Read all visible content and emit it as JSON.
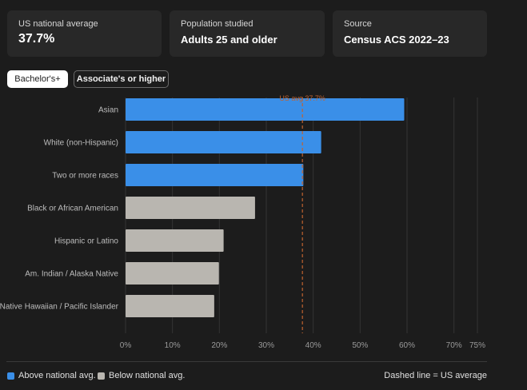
{
  "cards": [
    {
      "label": "US national average",
      "value": "37.7%"
    },
    {
      "label": "Population studied",
      "value": "Adults 25 and older"
    },
    {
      "label": "Source",
      "value": "Census ACS 2022–23"
    }
  ],
  "tabs": [
    {
      "label": "Bachelor's+",
      "active": true
    },
    {
      "label": "Associate's or higher",
      "active": false
    }
  ],
  "chart_data": {
    "type": "bar",
    "orientation": "horizontal",
    "categories": [
      "Asian",
      "White (non-Hispanic)",
      "Two or more races",
      "Black or African American",
      "Hispanic or Latino",
      "Am. Indian / Alaska Native",
      "Native Hawaiian / Pacific Islander"
    ],
    "values": [
      59.4,
      41.7,
      37.9,
      27.6,
      20.9,
      19.9,
      18.9
    ],
    "above_average": [
      true,
      true,
      true,
      false,
      false,
      false,
      false
    ],
    "reference_line": {
      "value": 37.7,
      "label": "US avg 37.7%"
    },
    "xticks": [
      0,
      10,
      20,
      30,
      40,
      50,
      60,
      70,
      75
    ],
    "xtick_labels": [
      "0%",
      "10%",
      "20%",
      "30%",
      "40%",
      "50%",
      "60%",
      "70%",
      "75%"
    ],
    "xlim": [
      0,
      75
    ],
    "grid": true,
    "colors": {
      "above": "#3a8fe8",
      "below": "#b9b6b0",
      "reference": "#c0622f",
      "grid": "#333333"
    }
  },
  "legend": {
    "above_label": "Above national avg.",
    "below_label": "Below national avg.",
    "note": "Dashed line = US average"
  }
}
